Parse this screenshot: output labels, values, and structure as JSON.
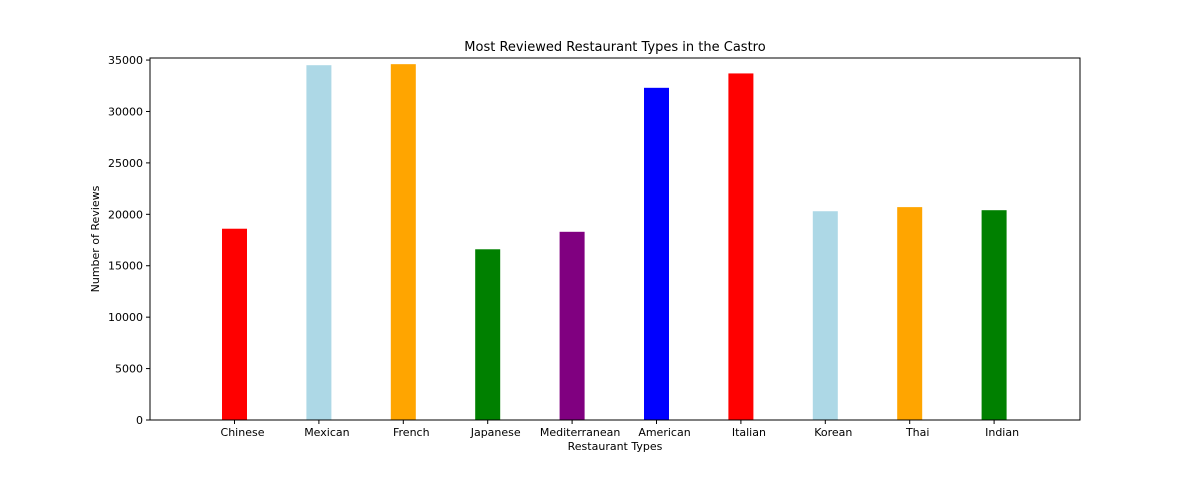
{
  "chart_data": {
    "type": "bar",
    "title": "Most Reviewed Restaurant Types in the Castro",
    "xlabel": "Restaurant Types",
    "ylabel": "Number of Reviews",
    "categories": [
      "Chinese",
      "Mexican",
      "French",
      "Japanese",
      "Mediterranean",
      "American",
      "Italian",
      "Korean",
      "Thai",
      "Indian"
    ],
    "values": [
      18600,
      34500,
      34600,
      16600,
      18300,
      32300,
      33700,
      20300,
      20700,
      20400
    ],
    "colors": [
      "#ff0000",
      "#add8e6",
      "#ffa500",
      "#008000",
      "#800080",
      "#0000ff",
      "#ff0000",
      "#add8e6",
      "#ffa500",
      "#008000"
    ],
    "ylim": [
      0,
      35200
    ],
    "yticks": [
      0,
      5000,
      10000,
      15000,
      20000,
      25000,
      30000,
      35000
    ],
    "grid": false,
    "legend": "none"
  }
}
